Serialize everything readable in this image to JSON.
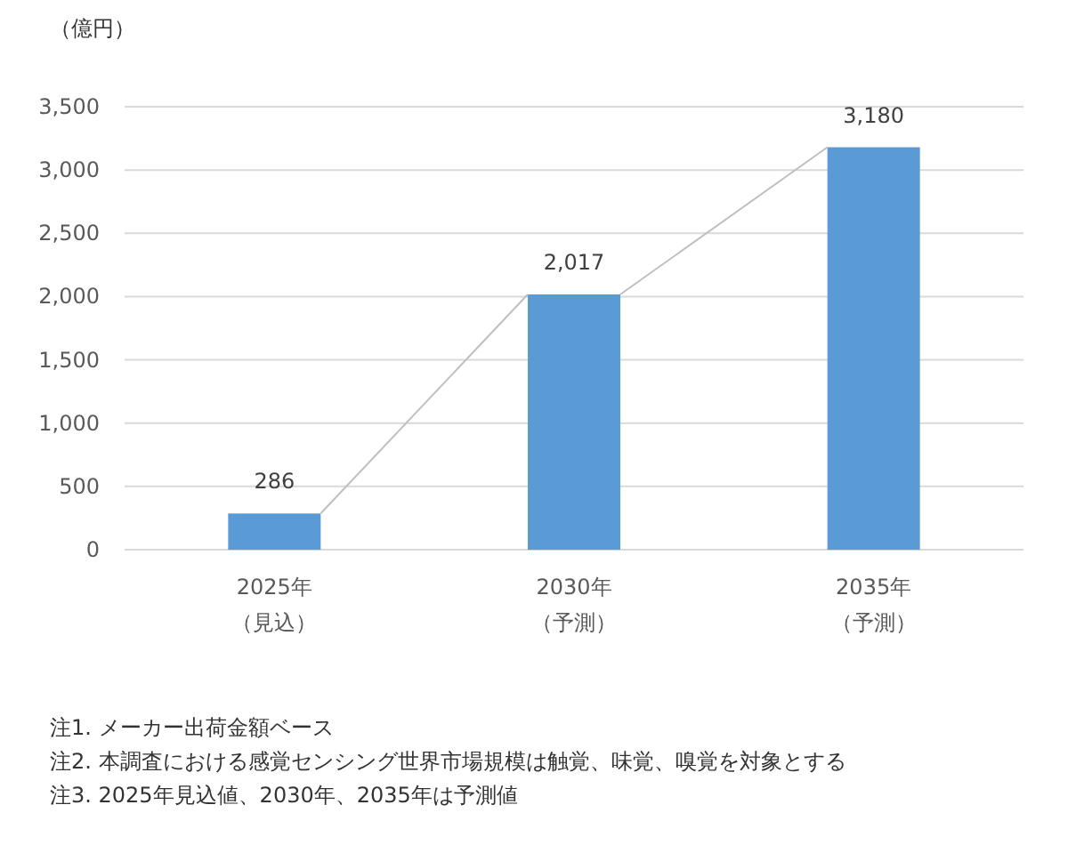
{
  "chart_data": {
    "type": "bar",
    "ylabel": "（億円）",
    "categories": [
      "2025年（見込）",
      "2030年（予測）",
      "2035年（予測）"
    ],
    "series": [
      {
        "color": "#5b9bd5",
        "values": [
          286,
          2017,
          3180
        ],
        "value_labels": [
          "286",
          "2,017",
          "3,180"
        ]
      }
    ],
    "ylim": [
      0,
      3500
    ],
    "yticks": [
      {
        "value": 0,
        "label": "0"
      },
      {
        "value": 500,
        "label": "500"
      },
      {
        "value": 1000,
        "label": "1,000"
      },
      {
        "value": 1500,
        "label": "1,500"
      },
      {
        "value": 2000,
        "label": "2,000"
      },
      {
        "value": 2500,
        "label": "2,500"
      },
      {
        "value": 3000,
        "label": "3,000"
      },
      {
        "value": 3500,
        "label": "3,500"
      }
    ],
    "grid": "y",
    "annotations": [
      "注1. メーカー出荷金額ベース",
      "注2. 本調査における感覚センシング世界市場規模は触覚、味覚、嗅覚を対象とする",
      "注3. 2025年見込値、2030年、2035年は予測値"
    ]
  }
}
